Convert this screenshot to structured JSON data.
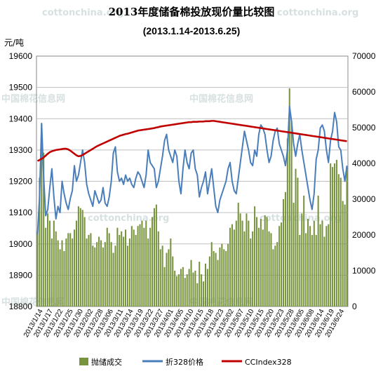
{
  "watermarks": [
    "cottonchina.org",
    "中国棉花信息网"
  ],
  "chart_data": {
    "type": "bar+line",
    "title": "2013年度储备棉投放现价量比较图",
    "subtitle": "(2013.1.14-2013.6.25)",
    "y_left_unit": "元/吨",
    "y_left_ticks": [
      "19600",
      "19500",
      "19400",
      "19300",
      "19200",
      "19100",
      "19000",
      "18900",
      "18800"
    ],
    "y_left_range": [
      18800,
      19600
    ],
    "y_right_ticks": [
      "70000",
      "60000",
      "50000",
      "40000",
      "30000",
      "20000",
      "10000",
      "0"
    ],
    "y_right_range": [
      0,
      70000
    ],
    "x_tick_labels": [
      "2013/1/14",
      "2013/1/17",
      "2013/1/22",
      "2013/1/25",
      "2013/1/30",
      "2013/2/02",
      "2013/2/28",
      "2013/3/06",
      "2013/3/11",
      "2013/3/14",
      "2013/3/19",
      "2013/3/22",
      "2013/3/27",
      "2013/4/01",
      "2013/4/05",
      "2013/4/10",
      "2013/4/15",
      "2013/4/18",
      "2013/4/23",
      "2013/5/02",
      "2013/5/07",
      "2013/5/10",
      "2013/5/15",
      "2013/5/20",
      "2013/5/23",
      "2013/5/28",
      "2013/6/05",
      "2013/6/08",
      "2013/6/14",
      "2013/6/19",
      "2013/6/24"
    ],
    "series": [
      {
        "name": "抛储成交",
        "type": "bar",
        "axis": "right",
        "color": "#77933c",
        "values": [
          21000,
          36000,
          51000,
          43000,
          22000,
          26000,
          24000,
          19000,
          24000,
          21000,
          18500,
          16000,
          18500,
          15500,
          19000,
          20500,
          20500,
          19000,
          21500,
          24000,
          28000,
          27500,
          27000,
          25000,
          19000,
          20000,
          20500,
          17000,
          16500,
          18000,
          19500,
          18500,
          16500,
          18000,
          22000,
          20500,
          18000,
          15000,
          17000,
          22000,
          20000,
          21000,
          19500,
          21500,
          17000,
          19000,
          22500,
          21500,
          20000,
          22500,
          23000,
          24000,
          22000,
          24000,
          19000,
          22000,
          25000,
          27500,
          28500,
          21000,
          16000,
          17000,
          11000,
          15000,
          16000,
          19000,
          14000,
          10000,
          8500,
          9000,
          10500,
          11000,
          8000,
          9000,
          10500,
          13000,
          9500,
          10000,
          6500,
          12500,
          9000,
          7000,
          12000,
          10500,
          14000,
          18000,
          15500,
          15000,
          13000,
          16500,
          17500,
          16000,
          15500,
          17500,
          22000,
          23000,
          21500,
          24000,
          29000,
          26000,
          24000,
          21000,
          26000,
          24000,
          19000,
          21000,
          28000,
          25000,
          22000,
          24500,
          21500,
          25500,
          25000,
          21000,
          20500,
          16000,
          17000,
          18000,
          22500,
          23500,
          30000,
          32000,
          47000,
          61000,
          52000,
          29000,
          38500,
          36000,
          20000,
          26000,
          31000,
          20500,
          24500,
          22500,
          20000,
          24000,
          20000,
          31000,
          23000,
          24000,
          19500,
          22500,
          23000,
          40000,
          39000,
          40000,
          41000,
          37000,
          36000,
          29500,
          28500,
          39000
        ]
      },
      {
        "name": "折328价格",
        "type": "line",
        "axis": "left",
        "color": "#4a7ebb",
        "values": [
          19030,
          19150,
          19385,
          19215,
          19090,
          19110,
          19180,
          19240,
          19150,
          19080,
          19120,
          19100,
          19200,
          19160,
          19130,
          19110,
          19145,
          19170,
          19250,
          19200,
          19220,
          19260,
          19300,
          19260,
          19190,
          19160,
          19140,
          19120,
          19170,
          19150,
          19130,
          19140,
          19180,
          19130,
          19120,
          19150,
          19200,
          19290,
          19310,
          19230,
          19200,
          19210,
          19190,
          19220,
          19200,
          19210,
          19190,
          19180,
          19210,
          19230,
          19220,
          19200,
          19180,
          19220,
          19300,
          19260,
          19250,
          19240,
          19180,
          19200,
          19240,
          19280,
          19330,
          19350,
          19300,
          19280,
          19260,
          19300,
          19280,
          19200,
          19160,
          19240,
          19300,
          19260,
          19240,
          19290,
          19300,
          19240,
          19220,
          19150,
          19180,
          19200,
          19230,
          19160,
          19200,
          19240,
          19180,
          19120,
          19100,
          19140,
          19160,
          19180,
          19200,
          19240,
          19260,
          19200,
          19170,
          19160,
          19210,
          19260,
          19310,
          19360,
          19330,
          19300,
          19260,
          19250,
          19300,
          19280,
          19350,
          19380,
          19370,
          19350,
          19300,
          19260,
          19280,
          19330,
          19360,
          19370,
          19320,
          19300,
          19280,
          19250,
          19300,
          19440,
          19390,
          19320,
          19280,
          19320,
          19350,
          19300,
          19260,
          19220,
          19180,
          19140,
          19110,
          19160,
          19270,
          19300,
          19370,
          19380,
          19360,
          19300,
          19260,
          19330,
          19360,
          19420,
          19390,
          19310,
          19300,
          19240,
          19200,
          19250
        ]
      },
      {
        "name": "CCIndex328",
        "type": "line",
        "axis": "left",
        "color": "#c00000",
        "values": [
          19265,
          19268,
          19272,
          19276,
          19282,
          19288,
          19293,
          19296,
          19298,
          19300,
          19301,
          19302,
          19303,
          19304,
          19304,
          19302,
          19298,
          19293,
          19288,
          19283,
          19280,
          19281,
          19284,
          19288,
          19292,
          19296,
          19300,
          19304,
          19308,
          19312,
          19315,
          19318,
          19321,
          19324,
          19327,
          19330,
          19333,
          19336,
          19339,
          19342,
          19345,
          19347,
          19349,
          19351,
          19352,
          19354,
          19356,
          19358,
          19360,
          19362,
          19363,
          19364,
          19365,
          19366,
          19367,
          19368,
          19369,
          19370,
          19372,
          19373,
          19375,
          19376,
          19377,
          19378,
          19379,
          19380,
          19381,
          19382,
          19383,
          19384,
          19385,
          19386,
          19387,
          19388,
          19389,
          19389,
          19390,
          19390,
          19390,
          19391,
          19391,
          19391,
          19392,
          19392,
          19392,
          19393,
          19393,
          19392,
          19391,
          19390,
          19389,
          19388,
          19387,
          19386,
          19385,
          19384,
          19383,
          19382,
          19381,
          19380,
          19379,
          19378,
          19377,
          19376,
          19375,
          19374,
          19373,
          19372,
          19371,
          19370,
          19369,
          19368,
          19367,
          19366,
          19365,
          19364,
          19363,
          19362,
          19361,
          19360,
          19359,
          19358,
          19357,
          19356,
          19355,
          19354,
          19353,
          19352,
          19351,
          19350,
          19349,
          19348,
          19347,
          19346,
          19345,
          19344,
          19343,
          19342,
          19341,
          19340,
          19339,
          19338,
          19337,
          19336,
          19335,
          19334,
          19333,
          19332,
          19331,
          19330,
          19329,
          19328
        ]
      }
    ]
  }
}
